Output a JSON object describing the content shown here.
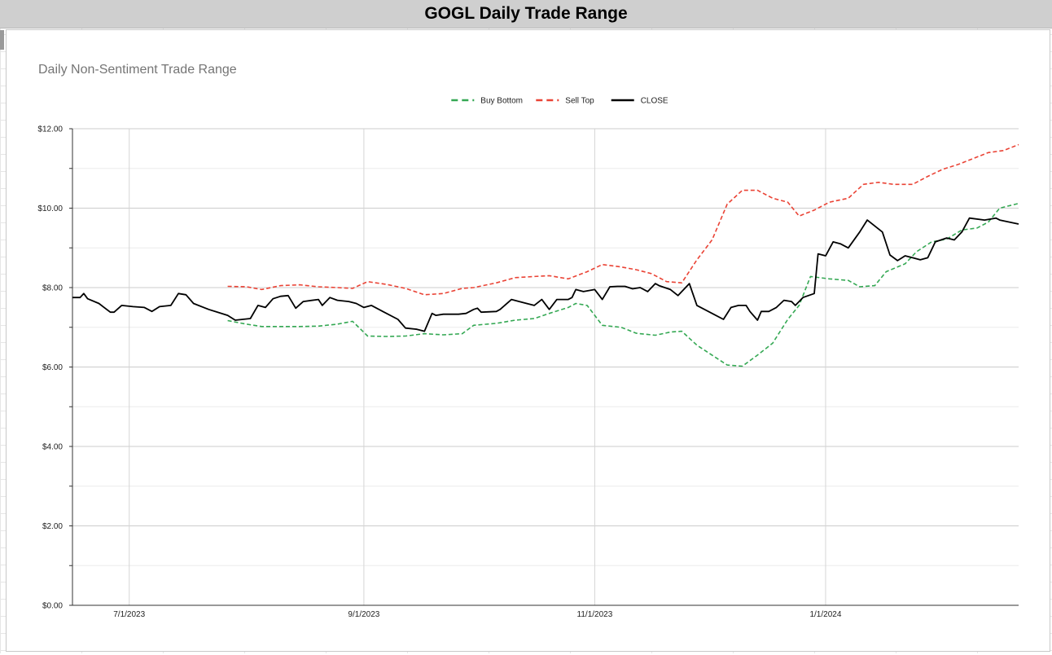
{
  "page_title": "GOGL Daily Trade Range",
  "chart_data": {
    "type": "line",
    "title": "Daily Non-Sentiment Trade Range",
    "xlabel": "",
    "ylabel": "",
    "ylim": [
      0,
      12
    ],
    "yticks": [
      "$0.00",
      "$2.00",
      "$4.00",
      "$6.00",
      "$8.00",
      "$10.00",
      "$12.00"
    ],
    "xlim": [
      "2023-06-16",
      "2024-02-21"
    ],
    "xticks": [
      {
        "date": "2023-07-01",
        "label": "7/1/2023"
      },
      {
        "date": "2023-09-01",
        "label": "9/1/2023"
      },
      {
        "date": "2023-11-01",
        "label": "11/1/2023"
      },
      {
        "date": "2024-01-01",
        "label": "1/1/2024"
      }
    ],
    "grid": true,
    "legend_position": "top-center",
    "series": [
      {
        "name": "Buy Bottom",
        "color": "#34a853",
        "style": "dashed",
        "points": [
          [
            "2023-07-27",
            7.17
          ],
          [
            "2023-08-01",
            7.08
          ],
          [
            "2023-08-05",
            7.02
          ],
          [
            "2023-08-10",
            7.02
          ],
          [
            "2023-08-15",
            7.02
          ],
          [
            "2023-08-20",
            7.03
          ],
          [
            "2023-08-25",
            7.08
          ],
          [
            "2023-08-29",
            7.15
          ],
          [
            "2023-09-02",
            6.78
          ],
          [
            "2023-09-07",
            6.77
          ],
          [
            "2023-09-12",
            6.78
          ],
          [
            "2023-09-17",
            6.84
          ],
          [
            "2023-09-22",
            6.81
          ],
          [
            "2023-09-27",
            6.84
          ],
          [
            "2023-09-30",
            7.05
          ],
          [
            "2023-10-06",
            7.1
          ],
          [
            "2023-10-11",
            7.18
          ],
          [
            "2023-10-16",
            7.22
          ],
          [
            "2023-10-20",
            7.35
          ],
          [
            "2023-10-25",
            7.5
          ],
          [
            "2023-10-27",
            7.6
          ],
          [
            "2023-10-30",
            7.55
          ],
          [
            "2023-11-03",
            7.05
          ],
          [
            "2023-11-08",
            7.0
          ],
          [
            "2023-11-12",
            6.85
          ],
          [
            "2023-11-17",
            6.8
          ],
          [
            "2023-11-21",
            6.88
          ],
          [
            "2023-11-24",
            6.9
          ],
          [
            "2023-11-28",
            6.55
          ],
          [
            "2023-12-02",
            6.3
          ],
          [
            "2023-12-06",
            6.05
          ],
          [
            "2023-12-10",
            6.02
          ],
          [
            "2023-12-14",
            6.3
          ],
          [
            "2023-12-18",
            6.6
          ],
          [
            "2023-12-22",
            7.2
          ],
          [
            "2023-12-25",
            7.55
          ],
          [
            "2023-12-28",
            8.28
          ],
          [
            "2024-01-02",
            8.22
          ],
          [
            "2024-01-07",
            8.18
          ],
          [
            "2024-01-10",
            8.02
          ],
          [
            "2024-01-14",
            8.05
          ],
          [
            "2024-01-17",
            8.4
          ],
          [
            "2024-01-22",
            8.6
          ],
          [
            "2024-01-25",
            8.9
          ],
          [
            "2024-01-29",
            9.15
          ],
          [
            "2024-02-02",
            9.22
          ],
          [
            "2024-02-06",
            9.45
          ],
          [
            "2024-02-10",
            9.5
          ],
          [
            "2024-02-13",
            9.65
          ],
          [
            "2024-02-16",
            10.0
          ],
          [
            "2024-02-21",
            10.12
          ]
        ]
      },
      {
        "name": "Sell Top",
        "color": "#ea4335",
        "style": "dashed",
        "points": [
          [
            "2023-07-27",
            8.03
          ],
          [
            "2023-08-01",
            8.02
          ],
          [
            "2023-08-05",
            7.95
          ],
          [
            "2023-08-10",
            8.05
          ],
          [
            "2023-08-15",
            8.07
          ],
          [
            "2023-08-20",
            8.02
          ],
          [
            "2023-08-25",
            8.0
          ],
          [
            "2023-08-29",
            7.98
          ],
          [
            "2023-09-02",
            8.15
          ],
          [
            "2023-09-07",
            8.08
          ],
          [
            "2023-09-12",
            7.98
          ],
          [
            "2023-09-17",
            7.82
          ],
          [
            "2023-09-22",
            7.85
          ],
          [
            "2023-09-27",
            7.98
          ],
          [
            "2023-09-30",
            8.0
          ],
          [
            "2023-10-06",
            8.12
          ],
          [
            "2023-10-11",
            8.25
          ],
          [
            "2023-10-16",
            8.28
          ],
          [
            "2023-10-20",
            8.3
          ],
          [
            "2023-10-25",
            8.22
          ],
          [
            "2023-10-30",
            8.4
          ],
          [
            "2023-11-03",
            8.58
          ],
          [
            "2023-11-08",
            8.52
          ],
          [
            "2023-11-12",
            8.45
          ],
          [
            "2023-11-16",
            8.35
          ],
          [
            "2023-11-20",
            8.15
          ],
          [
            "2023-11-24",
            8.12
          ],
          [
            "2023-11-28",
            8.7
          ],
          [
            "2023-12-02",
            9.2
          ],
          [
            "2023-12-06",
            10.1
          ],
          [
            "2023-12-10",
            10.45
          ],
          [
            "2023-12-14",
            10.45
          ],
          [
            "2023-12-18",
            10.25
          ],
          [
            "2023-12-22",
            10.15
          ],
          [
            "2023-12-25",
            9.8
          ],
          [
            "2023-12-29",
            9.95
          ],
          [
            "2024-01-02",
            10.15
          ],
          [
            "2024-01-07",
            10.25
          ],
          [
            "2024-01-11",
            10.6
          ],
          [
            "2024-01-15",
            10.65
          ],
          [
            "2024-01-19",
            10.6
          ],
          [
            "2024-01-24",
            10.6
          ],
          [
            "2024-01-28",
            10.8
          ],
          [
            "2024-02-01",
            10.98
          ],
          [
            "2024-02-05",
            11.1
          ],
          [
            "2024-02-09",
            11.25
          ],
          [
            "2024-02-13",
            11.4
          ],
          [
            "2024-02-17",
            11.45
          ],
          [
            "2024-02-21",
            11.6
          ]
        ]
      },
      {
        "name": "CLOSE",
        "color": "#000000",
        "style": "solid",
        "points": [
          [
            "2023-06-16",
            7.75
          ],
          [
            "2023-06-18",
            7.75
          ],
          [
            "2023-06-19",
            7.85
          ],
          [
            "2023-06-20",
            7.72
          ],
          [
            "2023-06-23",
            7.6
          ],
          [
            "2023-06-26",
            7.38
          ],
          [
            "2023-06-27",
            7.38
          ],
          [
            "2023-06-29",
            7.55
          ],
          [
            "2023-07-02",
            7.52
          ],
          [
            "2023-07-05",
            7.5
          ],
          [
            "2023-07-07",
            7.4
          ],
          [
            "2023-07-09",
            7.52
          ],
          [
            "2023-07-12",
            7.55
          ],
          [
            "2023-07-14",
            7.85
          ],
          [
            "2023-07-16",
            7.82
          ],
          [
            "2023-07-18",
            7.6
          ],
          [
            "2023-07-22",
            7.45
          ],
          [
            "2023-07-27",
            7.3
          ],
          [
            "2023-07-29",
            7.18
          ],
          [
            "2023-08-02",
            7.22
          ],
          [
            "2023-08-04",
            7.55
          ],
          [
            "2023-08-06",
            7.5
          ],
          [
            "2023-08-08",
            7.72
          ],
          [
            "2023-08-10",
            7.78
          ],
          [
            "2023-08-12",
            7.8
          ],
          [
            "2023-08-14",
            7.48
          ],
          [
            "2023-08-16",
            7.65
          ],
          [
            "2023-08-20",
            7.7
          ],
          [
            "2023-08-21",
            7.55
          ],
          [
            "2023-08-23",
            7.75
          ],
          [
            "2023-08-25",
            7.68
          ],
          [
            "2023-08-28",
            7.65
          ],
          [
            "2023-08-30",
            7.6
          ],
          [
            "2023-09-01",
            7.5
          ],
          [
            "2023-09-03",
            7.55
          ],
          [
            "2023-09-06",
            7.4
          ],
          [
            "2023-09-10",
            7.2
          ],
          [
            "2023-09-12",
            6.98
          ],
          [
            "2023-09-15",
            6.95
          ],
          [
            "2023-09-17",
            6.9
          ],
          [
            "2023-09-19",
            7.35
          ],
          [
            "2023-09-20",
            7.3
          ],
          [
            "2023-09-22",
            7.33
          ],
          [
            "2023-09-26",
            7.33
          ],
          [
            "2023-09-28",
            7.35
          ],
          [
            "2023-09-30",
            7.45
          ],
          [
            "2023-10-01",
            7.48
          ],
          [
            "2023-10-02",
            7.38
          ],
          [
            "2023-10-06",
            7.4
          ],
          [
            "2023-10-07",
            7.45
          ],
          [
            "2023-10-10",
            7.7
          ],
          [
            "2023-10-14",
            7.6
          ],
          [
            "2023-10-16",
            7.55
          ],
          [
            "2023-10-18",
            7.7
          ],
          [
            "2023-10-20",
            7.45
          ],
          [
            "2023-10-22",
            7.7
          ],
          [
            "2023-10-25",
            7.7
          ],
          [
            "2023-10-26",
            7.75
          ],
          [
            "2023-10-27",
            7.95
          ],
          [
            "2023-10-29",
            7.9
          ],
          [
            "2023-11-01",
            7.95
          ],
          [
            "2023-11-03",
            7.7
          ],
          [
            "2023-11-05",
            8.02
          ],
          [
            "2023-11-07",
            8.03
          ],
          [
            "2023-11-09",
            8.03
          ],
          [
            "2023-11-11",
            7.97
          ],
          [
            "2023-11-13",
            8.0
          ],
          [
            "2023-11-15",
            7.9
          ],
          [
            "2023-11-17",
            8.1
          ],
          [
            "2023-11-18",
            8.05
          ],
          [
            "2023-11-21",
            7.95
          ],
          [
            "2023-11-23",
            7.8
          ],
          [
            "2023-11-26",
            8.1
          ],
          [
            "2023-11-28",
            7.55
          ],
          [
            "2023-11-30",
            7.45
          ],
          [
            "2023-12-02",
            7.35
          ],
          [
            "2023-12-05",
            7.2
          ],
          [
            "2023-12-07",
            7.5
          ],
          [
            "2023-12-09",
            7.55
          ],
          [
            "2023-12-11",
            7.55
          ],
          [
            "2023-12-12",
            7.4
          ],
          [
            "2023-12-14",
            7.18
          ],
          [
            "2023-12-15",
            7.4
          ],
          [
            "2023-12-17",
            7.4
          ],
          [
            "2023-12-19",
            7.5
          ],
          [
            "2023-12-21",
            7.68
          ],
          [
            "2023-12-23",
            7.65
          ],
          [
            "2023-12-24",
            7.55
          ],
          [
            "2023-12-26",
            7.75
          ],
          [
            "2023-12-29",
            7.85
          ],
          [
            "2023-12-30",
            8.85
          ],
          [
            "2024-01-01",
            8.8
          ],
          [
            "2024-01-03",
            9.15
          ],
          [
            "2024-01-05",
            9.1
          ],
          [
            "2024-01-07",
            9.0
          ],
          [
            "2024-01-10",
            9.4
          ],
          [
            "2024-01-12",
            9.7
          ],
          [
            "2024-01-14",
            9.55
          ],
          [
            "2024-01-16",
            9.4
          ],
          [
            "2024-01-18",
            8.82
          ],
          [
            "2024-01-20",
            8.68
          ],
          [
            "2024-01-22",
            8.8
          ],
          [
            "2024-01-24",
            8.75
          ],
          [
            "2024-01-26",
            8.7
          ],
          [
            "2024-01-28",
            8.75
          ],
          [
            "2024-01-30",
            9.15
          ],
          [
            "2024-02-02",
            9.25
          ],
          [
            "2024-02-04",
            9.2
          ],
          [
            "2024-02-06",
            9.4
          ],
          [
            "2024-02-08",
            9.75
          ],
          [
            "2024-02-12",
            9.7
          ],
          [
            "2024-02-15",
            9.75
          ],
          [
            "2024-02-16",
            9.7
          ],
          [
            "2024-02-21",
            9.6
          ]
        ]
      }
    ]
  }
}
